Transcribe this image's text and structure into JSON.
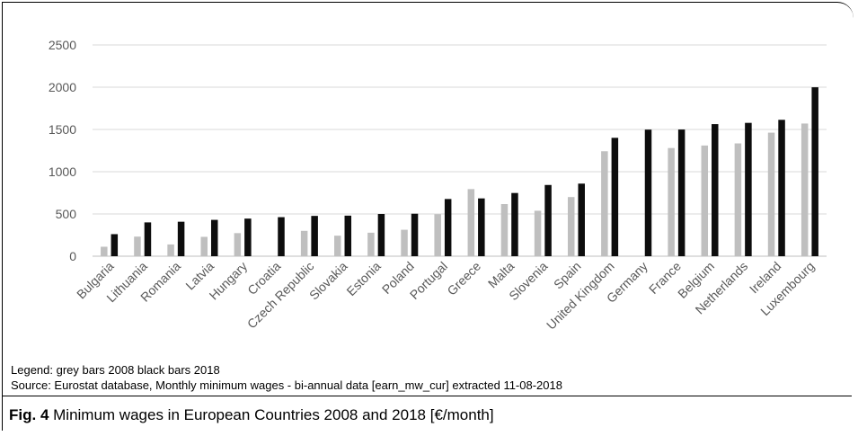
{
  "chart_data": {
    "type": "bar",
    "categories": [
      "Bulgaria",
      "Lithuania",
      "Romania",
      "Latvia",
      "Hungary",
      "Croatia",
      "Czech Republic",
      "Slovakia",
      "Estonia",
      "Poland",
      "Portugal",
      "Greece",
      "Malta",
      "Slovenia",
      "Spain",
      "United Kingdom",
      "Germany",
      "France",
      "Belgium",
      "Netherlands",
      "Ireland",
      "Luxembourg"
    ],
    "series": [
      {
        "values": [
          112,
          232,
          139,
          229,
          273,
          null,
          300,
          243,
          278,
          313,
          497,
          794,
          617,
          538,
          700,
          1242,
          null,
          1280,
          1310,
          1335,
          1462,
          1570
        ]
      },
      {
        "values": [
          261,
          400,
          408,
          430,
          445,
          462,
          477,
          480,
          500,
          503,
          677,
          684,
          748,
          843,
          859,
          1401,
          1498,
          1499,
          1563,
          1578,
          1614,
          1999
        ]
      }
    ],
    "colors": [
      "#bfbfbf",
      "#0d0d0d"
    ],
    "ylim": [
      0,
      2500
    ],
    "yticks": [
      0,
      500,
      1000,
      1500,
      2000,
      2500
    ],
    "grid": true
  },
  "notes": {
    "legend": "Legend: grey bars 2008   black bars 2018",
    "source": "Source: Eurostat database, Monthly minimum wages - bi-annual data [earn_mw_cur] extracted 11-08-2018"
  },
  "caption": {
    "label": "Fig. 4",
    "text": " Minimum wages in European Countries 2008 and 2018 [€/month]"
  }
}
